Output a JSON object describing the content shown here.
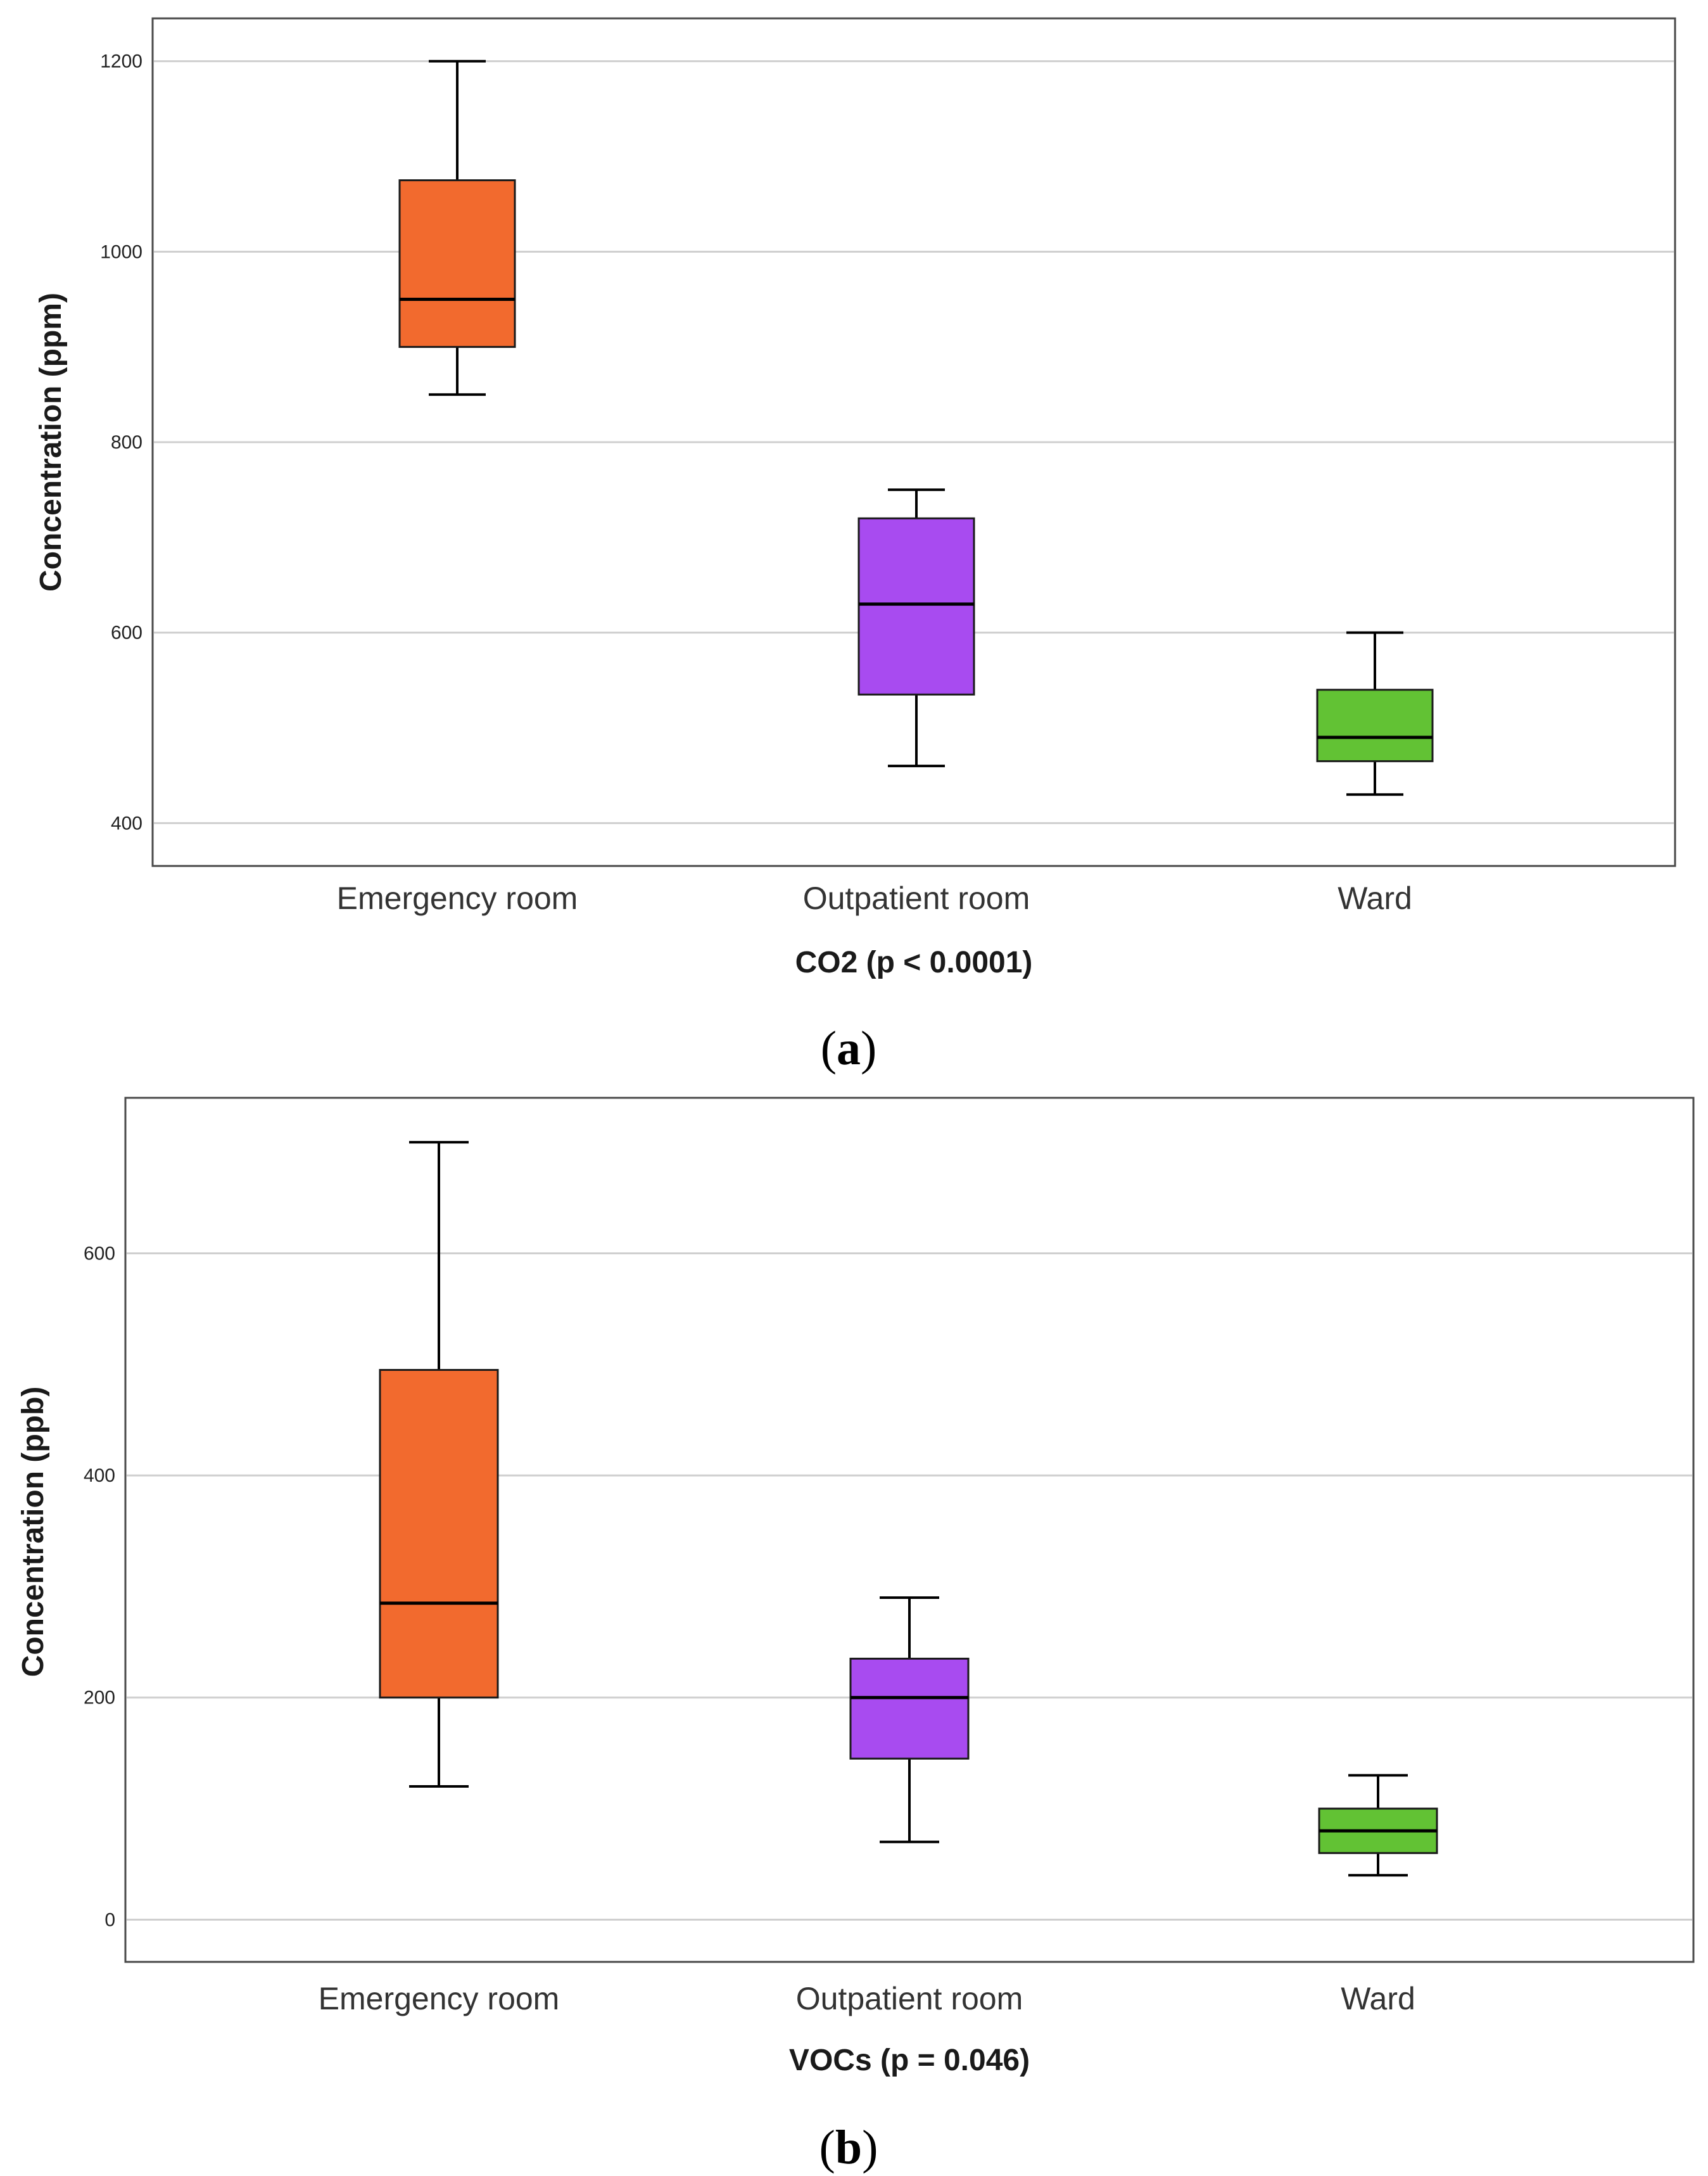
{
  "chart_data": [
    {
      "type": "boxplot",
      "panel_label": "a",
      "title": "",
      "xlabel": "CO2 (p < 0.0001)",
      "ylabel": "Concentration (ppm)",
      "ylim": [
        355,
        1245
      ],
      "yticks": [
        400,
        600,
        800,
        1000,
        1200
      ],
      "grid": true,
      "categories": [
        "Emergency room",
        "Outpatient room",
        "Ward"
      ],
      "boxes": [
        {
          "category": "Emergency room",
          "min": 850,
          "q1": 900,
          "median": 950,
          "q3": 1075,
          "max": 1200,
          "color": "#F26A2E"
        },
        {
          "category": "Outpatient room",
          "min": 460,
          "q1": 535,
          "median": 630,
          "q3": 720,
          "max": 750,
          "color": "#A84BF0"
        },
        {
          "category": "Ward",
          "min": 430,
          "q1": 465,
          "median": 490,
          "q3": 540,
          "max": 600,
          "color": "#62C234"
        }
      ]
    },
    {
      "type": "boxplot",
      "panel_label": "b",
      "title": "",
      "xlabel": "VOCs (p = 0.046)",
      "ylabel": "Concentration (ppb)",
      "ylim": [
        -38,
        740
      ],
      "yticks": [
        0,
        200,
        400,
        600
      ],
      "grid": true,
      "categories": [
        "Emergency room",
        "Outpatient room",
        "Ward"
      ],
      "boxes": [
        {
          "category": "Emergency room",
          "min": 120,
          "q1": 200,
          "median": 285,
          "q3": 495,
          "max": 700,
          "color": "#F26A2E"
        },
        {
          "category": "Outpatient room",
          "min": 70,
          "q1": 145,
          "median": 200,
          "q3": 235,
          "max": 290,
          "color": "#A84BF0"
        },
        {
          "category": "Ward",
          "min": 40,
          "q1": 60,
          "median": 80,
          "q3": 100,
          "max": 130,
          "color": "#62C234"
        }
      ]
    }
  ]
}
